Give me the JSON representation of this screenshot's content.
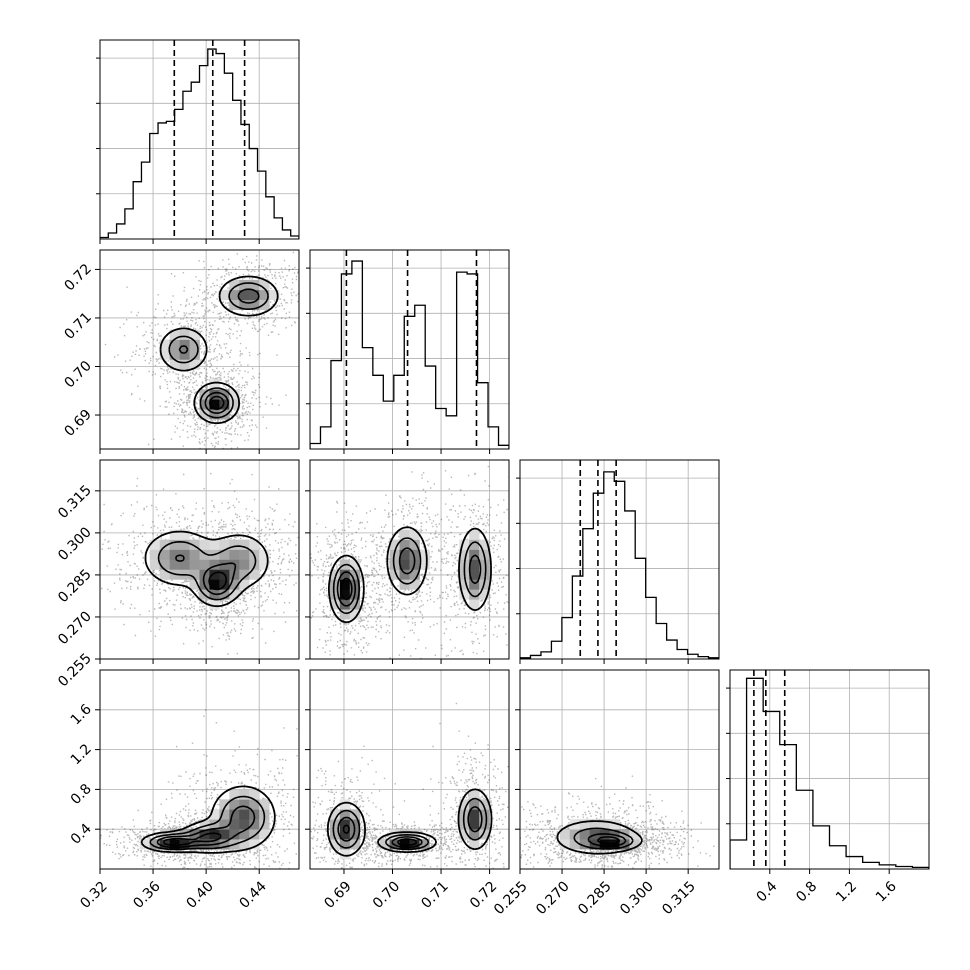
{
  "chart_data": {
    "type": "corner",
    "title": "",
    "parameters": [
      {
        "key": "p1",
        "range": [
          0.32,
          0.47
        ],
        "ticks": [
          "0.32",
          "0.36",
          "0.40",
          "0.44"
        ],
        "tick_values": [
          0.32,
          0.36,
          0.4,
          0.44
        ]
      },
      {
        "key": "p2",
        "range": [
          0.683,
          0.724
        ],
        "ticks": [
          "0.69",
          "0.70",
          "0.71",
          "0.72"
        ],
        "tick_values": [
          0.69,
          0.7,
          0.71,
          0.72
        ]
      },
      {
        "key": "p3",
        "range": [
          0.255,
          0.326
        ],
        "ticks": [
          "0.255",
          "0.270",
          "0.285",
          "0.300",
          "0.315"
        ],
        "tick_values": [
          0.255,
          0.27,
          0.285,
          0.3,
          0.315
        ]
      },
      {
        "key": "p4",
        "range": [
          0.0,
          2.0
        ],
        "ticks": [
          "0.4",
          "0.8",
          "1.2",
          "1.6"
        ],
        "tick_values": [
          0.4,
          0.8,
          1.2,
          1.6
        ]
      }
    ],
    "histograms": [
      {
        "param": "p1",
        "quantiles": [
          0.376,
          0.405,
          0.429
        ],
        "bin_counts": [
          1,
          4,
          10,
          20,
          38,
          51,
          70,
          77,
          78,
          86,
          98,
          104,
          115,
          126,
          123,
          110,
          92,
          76,
          60,
          45,
          28,
          14,
          6,
          2
        ],
        "ylim": [
          0,
          132
        ]
      },
      {
        "param": "p2",
        "quantiles": [
          0.6905,
          0.7031,
          0.7173
        ],
        "bin_counts": [
          3,
          12,
          48,
          95,
          102,
          55,
          40,
          26,
          40,
          72,
          78,
          45,
          22,
          18,
          96,
          95,
          36,
          12,
          2
        ],
        "ylim": [
          0,
          108
        ]
      },
      {
        "param": "p3",
        "quantiles": [
          0.2765,
          0.2828,
          0.2893
        ],
        "bin_counts": [
          1,
          3,
          6,
          15,
          35,
          70,
          110,
          140,
          158,
          150,
          125,
          85,
          52,
          30,
          16,
          8,
          4,
          2,
          1
        ],
        "ylim": [
          0,
          168
        ]
      },
      {
        "param": "p4",
        "quantiles": [
          0.24,
          0.36,
          0.55
        ],
        "bin_counts": [
          35,
          230,
          190,
          150,
          95,
          52,
          28,
          15,
          8,
          5,
          3,
          2
        ],
        "ylim": [
          0,
          240
        ]
      }
    ],
    "densities": [
      {
        "x": "p1",
        "y": "p2",
        "components": [
          {
            "x": 0.432,
            "y": 0.7145,
            "sx": 0.012,
            "sy": 0.0022,
            "w": 1.0
          },
          {
            "x": 0.383,
            "y": 0.7035,
            "sx": 0.01,
            "sy": 0.0025,
            "w": 0.85
          },
          {
            "x": 0.408,
            "y": 0.6925,
            "sx": 0.0085,
            "sy": 0.0021,
            "w": 1.35
          }
        ]
      },
      {
        "x": "p1",
        "y": "p3",
        "components": [
          {
            "x": 0.38,
            "y": 0.291,
            "sx": 0.015,
            "sy": 0.0055,
            "w": 0.9
          },
          {
            "x": 0.408,
            "y": 0.282,
            "sx": 0.009,
            "sy": 0.0042,
            "w": 1.3
          },
          {
            "x": 0.425,
            "y": 0.29,
            "sx": 0.013,
            "sy": 0.0055,
            "w": 0.8
          }
        ]
      },
      {
        "x": "p2",
        "y": "p3",
        "components": [
          {
            "x": 0.6905,
            "y": 0.28,
            "sx": 0.0018,
            "sy": 0.006,
            "w": 1.3
          },
          {
            "x": 0.703,
            "y": 0.29,
            "sx": 0.0022,
            "sy": 0.0065,
            "w": 1.0
          },
          {
            "x": 0.717,
            "y": 0.287,
            "sx": 0.0018,
            "sy": 0.008,
            "w": 0.95
          }
        ]
      },
      {
        "x": "p1",
        "y": "p4",
        "components": [
          {
            "x": 0.375,
            "y": 0.27,
            "sx": 0.012,
            "sy": 0.05,
            "w": 1.2
          },
          {
            "x": 0.403,
            "y": 0.32,
            "sx": 0.012,
            "sy": 0.08,
            "w": 1.0
          },
          {
            "x": 0.428,
            "y": 0.52,
            "sx": 0.013,
            "sy": 0.17,
            "w": 0.9
          }
        ]
      },
      {
        "x": "p2",
        "y": "p4",
        "components": [
          {
            "x": 0.6905,
            "y": 0.4,
            "sx": 0.002,
            "sy": 0.14,
            "w": 1.0
          },
          {
            "x": 0.703,
            "y": 0.27,
            "sx": 0.003,
            "sy": 0.05,
            "w": 1.2
          },
          {
            "x": 0.717,
            "y": 0.5,
            "sx": 0.0018,
            "sy": 0.16,
            "w": 0.95
          }
        ]
      },
      {
        "x": "p3",
        "y": "p4",
        "components": [
          {
            "x": 0.282,
            "y": 0.32,
            "sx": 0.0085,
            "sy": 0.1,
            "w": 1.0
          },
          {
            "x": 0.288,
            "y": 0.28,
            "sx": 0.005,
            "sy": 0.045,
            "w": 1.2
          }
        ]
      }
    ],
    "grid": true,
    "colors": {
      "line": "#000000",
      "grid": "#b0b0b0",
      "points": "#000000"
    }
  }
}
